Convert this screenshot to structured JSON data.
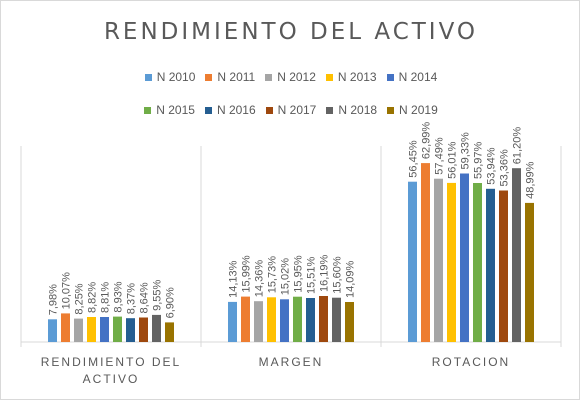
{
  "chart_data": {
    "type": "bar",
    "title": "RENDIMIENTO DEL ACTIVO",
    "categories": [
      "RENDIMIENTO DEL ACTIVO",
      "MARGEN",
      "ROTACION"
    ],
    "legend_position": "top",
    "grid": false,
    "ylim": [
      0,
      75
    ],
    "series": [
      {
        "name": "N 2010",
        "color": "#5b9bd5",
        "values": [
          7.98,
          14.13,
          56.45
        ],
        "labels": [
          "7,98%",
          "14,13%",
          "56,45%"
        ]
      },
      {
        "name": "N 2011",
        "color": "#ed7d31",
        "values": [
          10.07,
          15.99,
          62.99
        ],
        "labels": [
          "10,07%",
          "15,99%",
          "62,99%"
        ]
      },
      {
        "name": "N 2012",
        "color": "#a5a5a5",
        "values": [
          8.25,
          14.36,
          57.49
        ],
        "labels": [
          "8,25%",
          "14,36%",
          "57,49%"
        ]
      },
      {
        "name": "N 2013",
        "color": "#ffc000",
        "values": [
          8.82,
          15.73,
          56.01
        ],
        "labels": [
          "8,82%",
          "15,73%",
          "56,01%"
        ]
      },
      {
        "name": "N 2014",
        "color": "#4472c4",
        "values": [
          8.81,
          15.02,
          59.33
        ],
        "labels": [
          "8,81%",
          "15,02%",
          "59,33%"
        ]
      },
      {
        "name": "N 2015",
        "color": "#70ad47",
        "values": [
          8.93,
          15.95,
          55.97
        ],
        "labels": [
          "8,93%",
          "15,95%",
          "55,97%"
        ]
      },
      {
        "name": "N 2016",
        "color": "#255e91",
        "values": [
          8.37,
          15.51,
          53.94
        ],
        "labels": [
          "8,37%",
          "15,51%",
          "53,94%"
        ]
      },
      {
        "name": "N 2017",
        "color": "#9e480e",
        "values": [
          8.64,
          16.19,
          53.36
        ],
        "labels": [
          "8,64%",
          "16,19%",
          "53,36%"
        ]
      },
      {
        "name": "N 2018",
        "color": "#636363",
        "values": [
          9.55,
          15.6,
          61.2
        ],
        "labels": [
          "9,55%",
          "15,60%",
          "61,20%"
        ]
      },
      {
        "name": "N 2019",
        "color": "#997300",
        "values": [
          6.9,
          14.09,
          48.99
        ],
        "labels": [
          "6,90%",
          "14,09%",
          "48,99%"
        ]
      }
    ]
  }
}
